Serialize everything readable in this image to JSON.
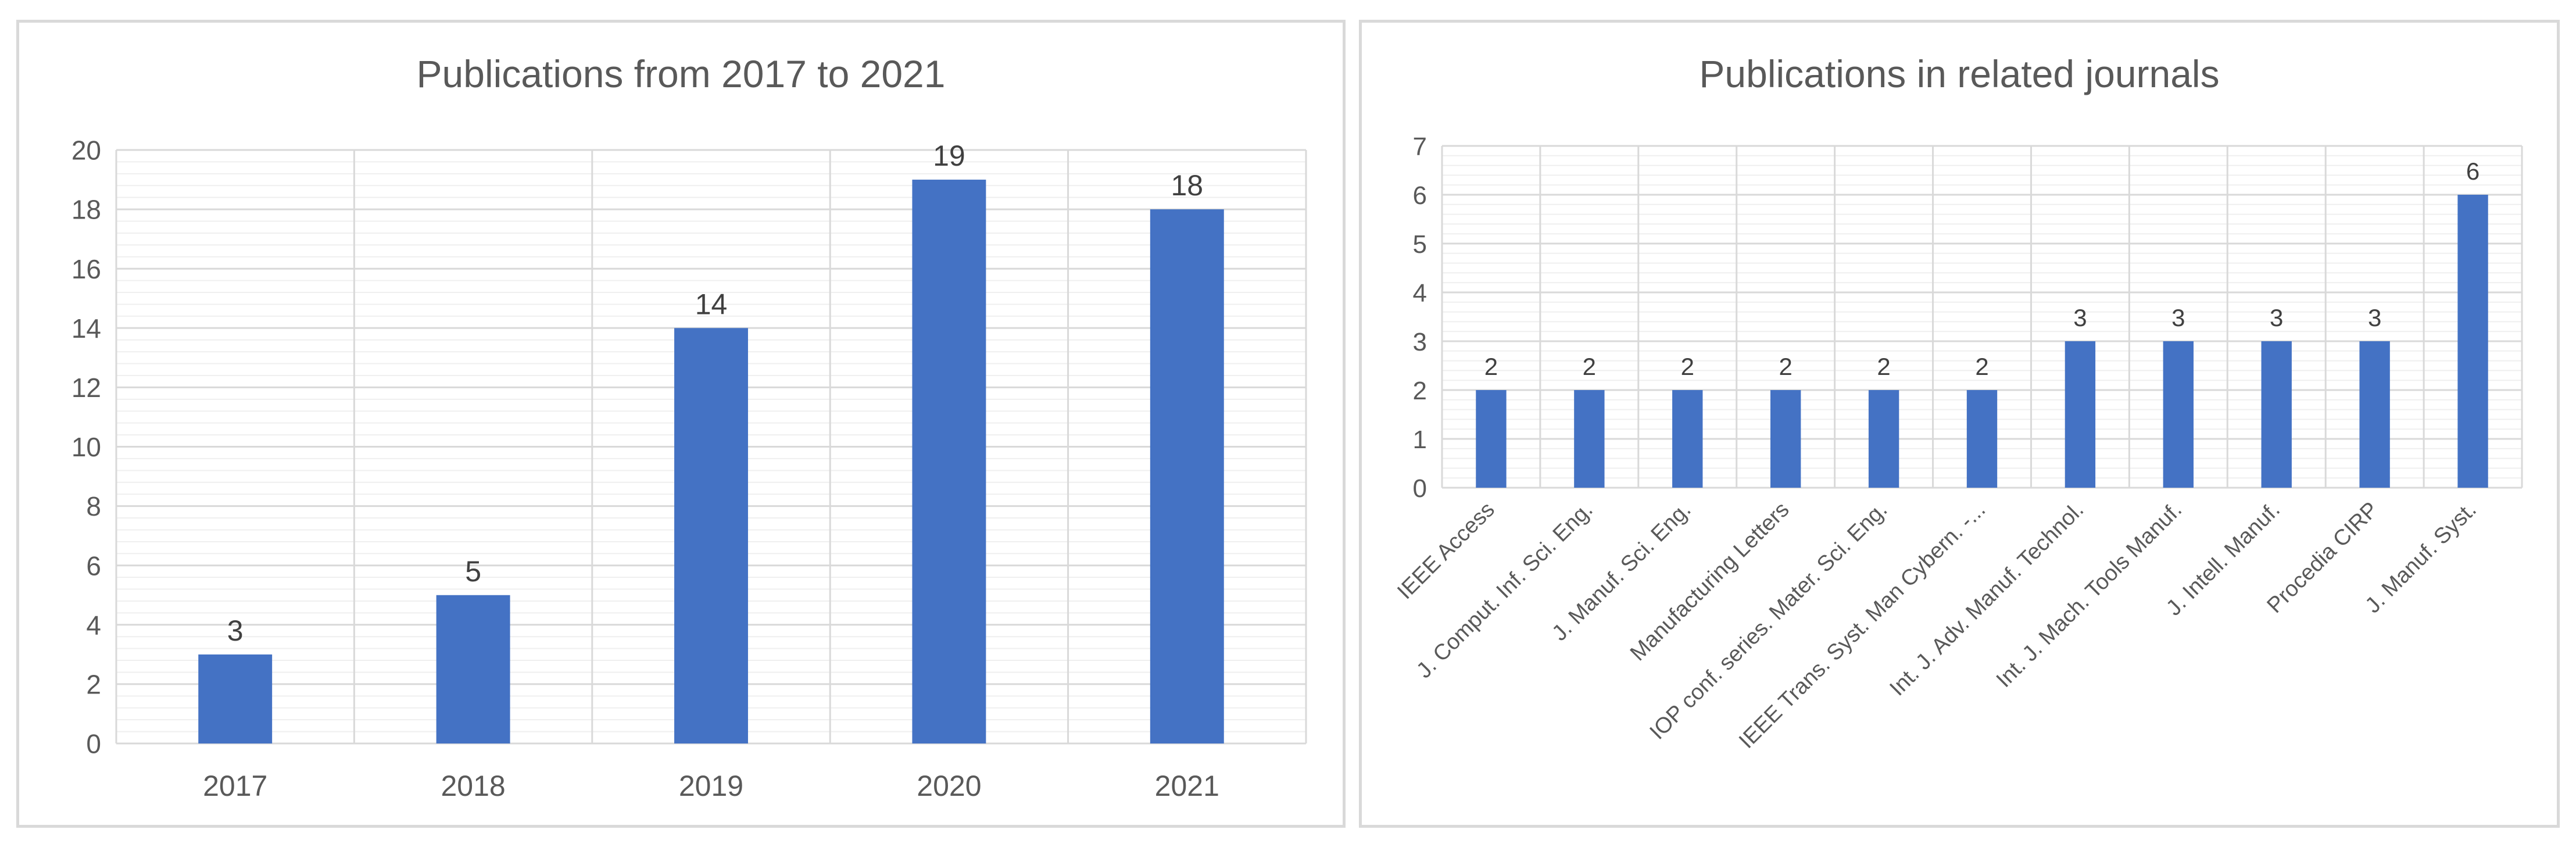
{
  "colors": {
    "bar": "#4472c4",
    "grid_major": "#d9d9d9",
    "grid_minor": "#efefef",
    "text": "#595959"
  },
  "chart_data": [
    {
      "type": "bar",
      "title": "Publications from 2017 to 2021",
      "categories": [
        "2017",
        "2018",
        "2019",
        "2020",
        "2021"
      ],
      "values": [
        3,
        5,
        14,
        19,
        18
      ],
      "ylim": [
        0,
        20
      ],
      "yticks": [
        "0",
        "2",
        "4",
        "6",
        "8",
        "10",
        "12",
        "14",
        "16",
        "18",
        "20"
      ],
      "xlabel": "",
      "ylabel": "",
      "grid": true,
      "legend": "none",
      "data_labels": true
    },
    {
      "type": "bar",
      "title": "Publications in related journals",
      "categories": [
        "IEEE Access",
        "J. Comput. Inf. Sci. Eng.",
        "J. Manuf. Sci. Eng.",
        "Manufacturing Letters",
        "IOP conf. series. Mater. Sci. Eng.",
        "IEEE Trans. Syst. Man Cybern. -...",
        "Int. J. Adv. Manuf. Technol.",
        "Int. J. Mach. Tools Manuf.",
        "J. Intell. Manuf.",
        "Procedia CIRP",
        "J. Manuf. Syst."
      ],
      "values": [
        2,
        2,
        2,
        2,
        2,
        2,
        3,
        3,
        3,
        3,
        6
      ],
      "ylim": [
        0,
        7
      ],
      "yticks": [
        "0",
        "1",
        "2",
        "3",
        "4",
        "5",
        "6",
        "7"
      ],
      "xlabel": "",
      "ylabel": "",
      "grid": true,
      "legend": "none",
      "data_labels": true
    }
  ]
}
